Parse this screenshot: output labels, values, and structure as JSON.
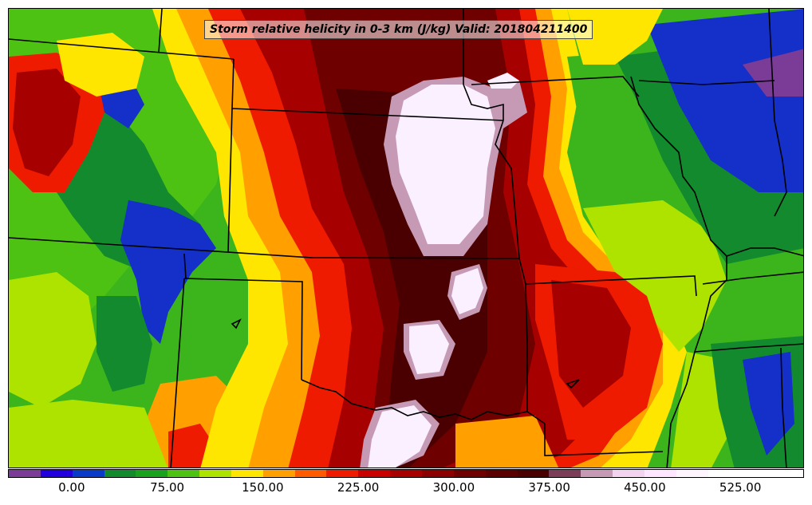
{
  "map": {
    "title": "Storm relative helicity in 0-3 km (J/kg) Valid: 201804211400",
    "field": "Storm relative helicity 0-3 km",
    "units": "J/kg",
    "valid_time": "201804211400",
    "region": "Central United States (Kansas, Oklahoma, Missouri, Arkansas and surroundings)"
  },
  "colorbar": {
    "tick_labels": [
      "0.00",
      "75.00",
      "150.00",
      "225.00",
      "300.00",
      "375.00",
      "450.00",
      "525.00"
    ],
    "tick_values": [
      0,
      75,
      150,
      225,
      300,
      375,
      450,
      525
    ],
    "min": -50,
    "max": 575,
    "step": 25,
    "colors": [
      "#7a3c96",
      "#2200dd",
      "#0a3bc8",
      "#138a2e",
      "#1aa11e",
      "#4ec212",
      "#aee300",
      "#ffe600",
      "#ff9f00",
      "#ff5a00",
      "#ee1b00",
      "#c80000",
      "#a60000",
      "#8b0000",
      "#6e0000",
      "#5a0000",
      "#4a0000",
      "#7a3c56",
      "#c69ab5",
      "#f3d3ee",
      "#ffe6ff",
      "#fff5ff",
      "#ffffff",
      "#ffffff",
      "#ffffff"
    ]
  },
  "palette": {
    "purple": "#7a3c96",
    "blue": "#1530c8",
    "dark_green": "#138a2e",
    "green": "#3cb51c",
    "lime": "#aee300",
    "yellow": "#ffe600",
    "orange": "#ff9f00",
    "red": "#ee1b00",
    "dark_red": "#a60000",
    "maroon": "#5a0000",
    "pink": "#e8b8dd",
    "white": "#fbf0ff",
    "border": "#000000"
  }
}
